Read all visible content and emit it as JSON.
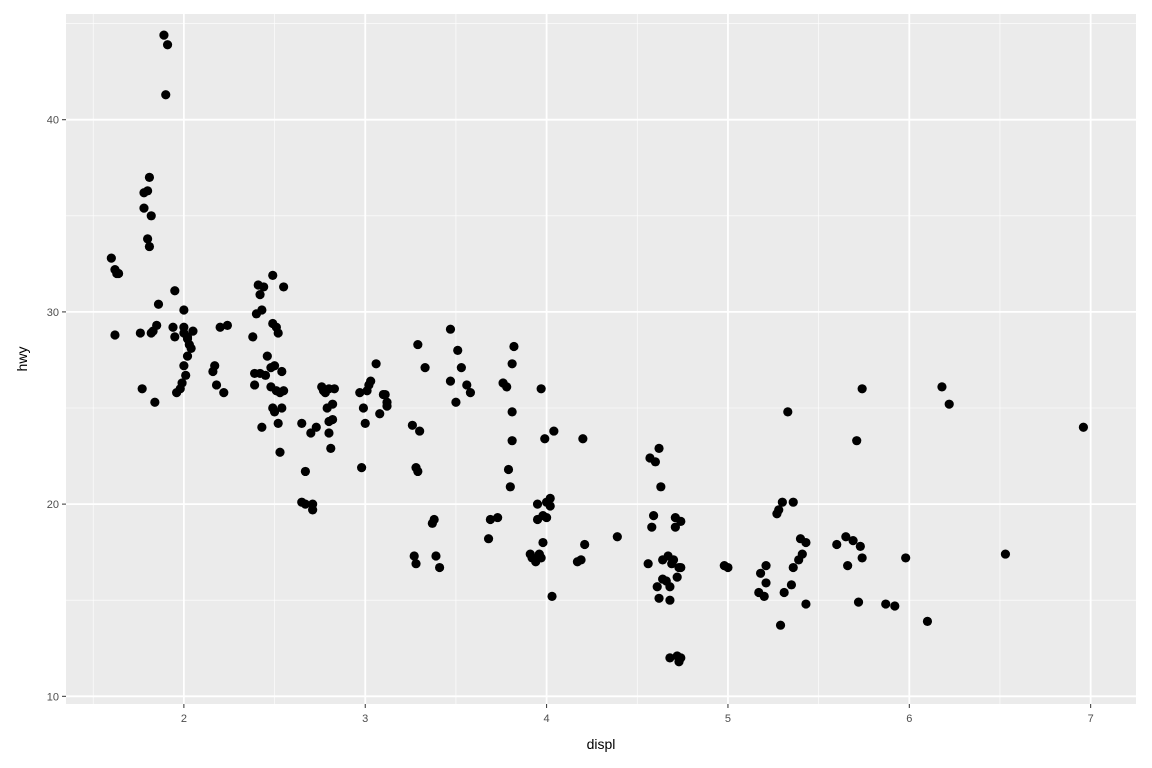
{
  "chart_data": {
    "type": "scatter",
    "title": "",
    "xlabel": "displ",
    "ylabel": "hwy",
    "xlim": [
      1.35,
      7.25
    ],
    "ylim": [
      9.6,
      45.5
    ],
    "x_ticks": [
      2,
      3,
      4,
      5,
      6,
      7
    ],
    "y_ticks": [
      10,
      20,
      30,
      40
    ],
    "x_tick_labels": [
      "2",
      "3",
      "4",
      "5",
      "6",
      "7"
    ],
    "y_tick_labels": [
      "10",
      "20",
      "30",
      "40"
    ],
    "grid": true,
    "point_color": "#000000",
    "panel_color": "#ebebeb",
    "points": [
      [
        1.6,
        32.8
      ],
      [
        1.62,
        32.2
      ],
      [
        1.63,
        32.0
      ],
      [
        1.64,
        32.0
      ],
      [
        1.62,
        28.8
      ],
      [
        1.76,
        28.9
      ],
      [
        1.77,
        26.0
      ],
      [
        1.78,
        36.2
      ],
      [
        1.78,
        35.4
      ],
      [
        1.8,
        33.8
      ],
      [
        1.81,
        33.4
      ],
      [
        1.8,
        36.3
      ],
      [
        1.81,
        37.0
      ],
      [
        1.82,
        35.0
      ],
      [
        1.82,
        28.9
      ],
      [
        1.83,
        29.0
      ],
      [
        1.84,
        25.3
      ],
      [
        1.85,
        29.3
      ],
      [
        1.86,
        30.4
      ],
      [
        1.89,
        44.4
      ],
      [
        1.91,
        43.9
      ],
      [
        1.9,
        41.3
      ],
      [
        1.95,
        31.1
      ],
      [
        1.94,
        29.2
      ],
      [
        1.95,
        28.7
      ],
      [
        1.96,
        25.8
      ],
      [
        1.98,
        26.0
      ],
      [
        1.99,
        26.3
      ],
      [
        2.0,
        28.9
      ],
      [
        2.0,
        29.2
      ],
      [
        2.0,
        27.2
      ],
      [
        2.01,
        26.7
      ],
      [
        2.02,
        27.7
      ],
      [
        2.02,
        28.7
      ],
      [
        2.03,
        28.3
      ],
      [
        2.04,
        28.1
      ],
      [
        2.05,
        29.0
      ],
      [
        2.0,
        30.1
      ],
      [
        2.02,
        28.6
      ],
      [
        2.16,
        26.9
      ],
      [
        2.17,
        27.2
      ],
      [
        2.18,
        26.2
      ],
      [
        2.2,
        29.2
      ],
      [
        2.22,
        25.8
      ],
      [
        2.24,
        29.3
      ],
      [
        2.38,
        28.7
      ],
      [
        2.39,
        26.8
      ],
      [
        2.39,
        26.2
      ],
      [
        2.4,
        29.9
      ],
      [
        2.41,
        31.4
      ],
      [
        2.42,
        26.8
      ],
      [
        2.42,
        30.9
      ],
      [
        2.43,
        30.1
      ],
      [
        2.43,
        24.0
      ],
      [
        2.44,
        31.3
      ],
      [
        2.45,
        26.7
      ],
      [
        2.46,
        27.7
      ],
      [
        2.48,
        27.1
      ],
      [
        2.48,
        26.1
      ],
      [
        2.49,
        25.0
      ],
      [
        2.49,
        29.4
      ],
      [
        2.49,
        31.9
      ],
      [
        2.5,
        24.8
      ],
      [
        2.5,
        27.2
      ],
      [
        2.51,
        29.2
      ],
      [
        2.51,
        25.9
      ],
      [
        2.52,
        28.9
      ],
      [
        2.52,
        24.2
      ],
      [
        2.53,
        25.8
      ],
      [
        2.53,
        22.7
      ],
      [
        2.54,
        26.9
      ],
      [
        2.54,
        25.0
      ],
      [
        2.55,
        31.3
      ],
      [
        2.55,
        25.9
      ],
      [
        2.65,
        24.2
      ],
      [
        2.65,
        20.1
      ],
      [
        2.67,
        21.7
      ],
      [
        2.67,
        20.0
      ],
      [
        2.7,
        23.7
      ],
      [
        2.71,
        19.7
      ],
      [
        2.71,
        20.0
      ],
      [
        2.73,
        24.0
      ],
      [
        2.76,
        26.1
      ],
      [
        2.77,
        25.9
      ],
      [
        2.78,
        25.8
      ],
      [
        2.79,
        25.0
      ],
      [
        2.8,
        24.3
      ],
      [
        2.8,
        23.7
      ],
      [
        2.8,
        26.0
      ],
      [
        2.81,
        22.9
      ],
      [
        2.82,
        24.4
      ],
      [
        2.82,
        25.2
      ],
      [
        2.83,
        26.0
      ],
      [
        2.97,
        25.8
      ],
      [
        2.98,
        21.9
      ],
      [
        2.99,
        25.0
      ],
      [
        3.0,
        24.2
      ],
      [
        3.01,
        25.9
      ],
      [
        3.02,
        26.2
      ],
      [
        3.03,
        26.4
      ],
      [
        3.06,
        27.3
      ],
      [
        3.08,
        24.7
      ],
      [
        3.1,
        25.7
      ],
      [
        3.11,
        25.7
      ],
      [
        3.12,
        25.3
      ],
      [
        3.12,
        25.1
      ],
      [
        3.26,
        24.1
      ],
      [
        3.27,
        17.3
      ],
      [
        3.28,
        16.9
      ],
      [
        3.28,
        21.9
      ],
      [
        3.29,
        21.7
      ],
      [
        3.29,
        28.3
      ],
      [
        3.3,
        23.8
      ],
      [
        3.33,
        27.1
      ],
      [
        3.37,
        19.0
      ],
      [
        3.38,
        19.2
      ],
      [
        3.39,
        17.3
      ],
      [
        3.41,
        16.7
      ],
      [
        3.47,
        29.1
      ],
      [
        3.47,
        26.4
      ],
      [
        3.5,
        25.3
      ],
      [
        3.51,
        28.0
      ],
      [
        3.53,
        27.1
      ],
      [
        3.56,
        26.2
      ],
      [
        3.58,
        25.8
      ],
      [
        3.68,
        18.2
      ],
      [
        3.69,
        19.2
      ],
      [
        3.73,
        19.3
      ],
      [
        3.76,
        26.3
      ],
      [
        3.78,
        26.1
      ],
      [
        3.79,
        21.8
      ],
      [
        3.8,
        20.9
      ],
      [
        3.81,
        27.3
      ],
      [
        3.81,
        24.8
      ],
      [
        3.81,
        23.3
      ],
      [
        3.82,
        28.2
      ],
      [
        3.91,
        17.4
      ],
      [
        3.92,
        17.2
      ],
      [
        3.94,
        17.0
      ],
      [
        3.95,
        19.2
      ],
      [
        3.95,
        20.0
      ],
      [
        3.96,
        17.4
      ],
      [
        3.97,
        17.2
      ],
      [
        3.97,
        26.0
      ],
      [
        3.98,
        18.0
      ],
      [
        3.98,
        19.4
      ],
      [
        3.99,
        23.4
      ],
      [
        4.0,
        20.1
      ],
      [
        4.0,
        19.3
      ],
      [
        4.02,
        19.9
      ],
      [
        4.02,
        20.3
      ],
      [
        4.03,
        15.2
      ],
      [
        4.04,
        23.8
      ],
      [
        4.17,
        17.0
      ],
      [
        4.19,
        17.1
      ],
      [
        4.2,
        23.4
      ],
      [
        4.21,
        17.9
      ],
      [
        4.39,
        18.3
      ],
      [
        4.56,
        16.9
      ],
      [
        4.57,
        22.4
      ],
      [
        4.58,
        18.8
      ],
      [
        4.59,
        19.4
      ],
      [
        4.6,
        22.2
      ],
      [
        4.61,
        15.7
      ],
      [
        4.62,
        22.9
      ],
      [
        4.62,
        15.1
      ],
      [
        4.63,
        20.9
      ],
      [
        4.64,
        17.1
      ],
      [
        4.64,
        16.1
      ],
      [
        4.66,
        16.0
      ],
      [
        4.67,
        17.3
      ],
      [
        4.68,
        15.0
      ],
      [
        4.68,
        15.7
      ],
      [
        4.68,
        12.0
      ],
      [
        4.69,
        16.9
      ],
      [
        4.7,
        17.1
      ],
      [
        4.71,
        19.3
      ],
      [
        4.71,
        18.8
      ],
      [
        4.72,
        16.2
      ],
      [
        4.72,
        12.1
      ],
      [
        4.73,
        11.8
      ],
      [
        4.73,
        16.7
      ],
      [
        4.74,
        19.1
      ],
      [
        4.74,
        16.7
      ],
      [
        4.74,
        12.0
      ],
      [
        4.98,
        16.8
      ],
      [
        5.0,
        16.7
      ],
      [
        5.17,
        15.4
      ],
      [
        5.18,
        16.4
      ],
      [
        5.2,
        15.2
      ],
      [
        5.21,
        16.8
      ],
      [
        5.21,
        15.9
      ],
      [
        5.27,
        19.5
      ],
      [
        5.28,
        19.7
      ],
      [
        5.29,
        13.7
      ],
      [
        5.3,
        20.1
      ],
      [
        5.31,
        15.4
      ],
      [
        5.33,
        24.8
      ],
      [
        5.35,
        15.8
      ],
      [
        5.36,
        20.1
      ],
      [
        5.36,
        16.7
      ],
      [
        5.39,
        17.1
      ],
      [
        5.4,
        18.2
      ],
      [
        5.41,
        17.4
      ],
      [
        5.43,
        14.8
      ],
      [
        5.43,
        18.0
      ],
      [
        5.6,
        17.9
      ],
      [
        5.65,
        18.3
      ],
      [
        5.66,
        16.8
      ],
      [
        5.69,
        18.1
      ],
      [
        5.71,
        23.3
      ],
      [
        5.72,
        14.9
      ],
      [
        5.73,
        17.8
      ],
      [
        5.74,
        17.2
      ],
      [
        5.74,
        26.0
      ],
      [
        5.87,
        14.8
      ],
      [
        5.92,
        14.7
      ],
      [
        5.98,
        17.2
      ],
      [
        6.1,
        13.9
      ],
      [
        6.18,
        26.1
      ],
      [
        6.22,
        25.2
      ],
      [
        6.53,
        17.4
      ],
      [
        6.96,
        24.0
      ]
    ]
  }
}
